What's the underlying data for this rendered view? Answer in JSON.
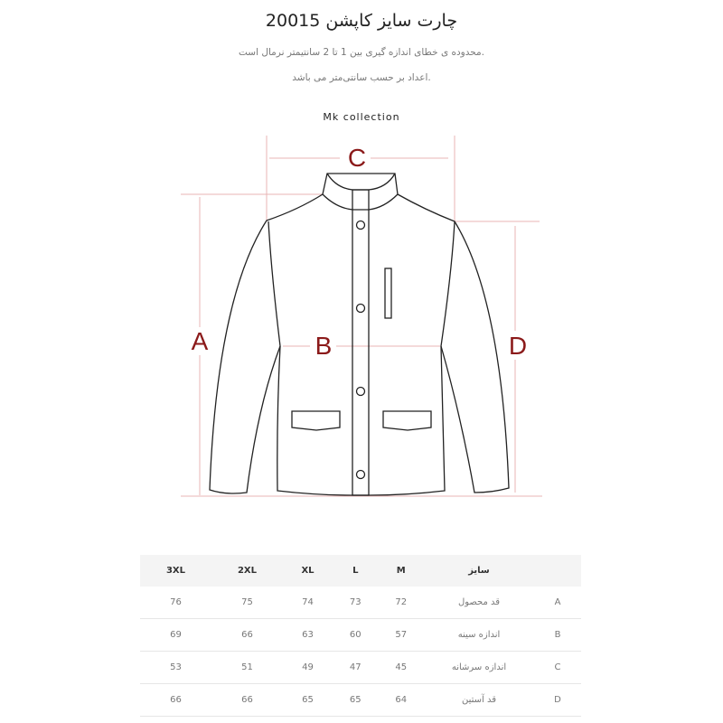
{
  "title": "چارت سایز کاپشن 20015",
  "notes": [
    "محدوده ی خطای اندازه گیری بین 1 تا 2 سانتیمتر نرمال است.",
    "اعداد بر حسب سانتی‌متر می باشد."
  ],
  "brand": "Mk collection",
  "diagram": {
    "labels": {
      "a": "A",
      "b": "B",
      "c": "C",
      "d": "D"
    },
    "label_color": "#8b1a1a",
    "guide_color": "#e8b4b4"
  },
  "table": {
    "headers": [
      "",
      "سایز",
      "M",
      "L",
      "XL",
      "2XL",
      "3XL"
    ],
    "rows": [
      {
        "code": "A",
        "name": "قد محصول",
        "values": [
          "72",
          "73",
          "74",
          "75",
          "76"
        ]
      },
      {
        "code": "B",
        "name": "اندازه سینه",
        "values": [
          "57",
          "60",
          "63",
          "66",
          "69"
        ]
      },
      {
        "code": "C",
        "name": "اندازه سرشانه",
        "values": [
          "45",
          "47",
          "49",
          "51",
          "53"
        ]
      },
      {
        "code": "D",
        "name": "قد آستین",
        "values": [
          "64",
          "65",
          "65",
          "66",
          "66"
        ]
      }
    ]
  }
}
